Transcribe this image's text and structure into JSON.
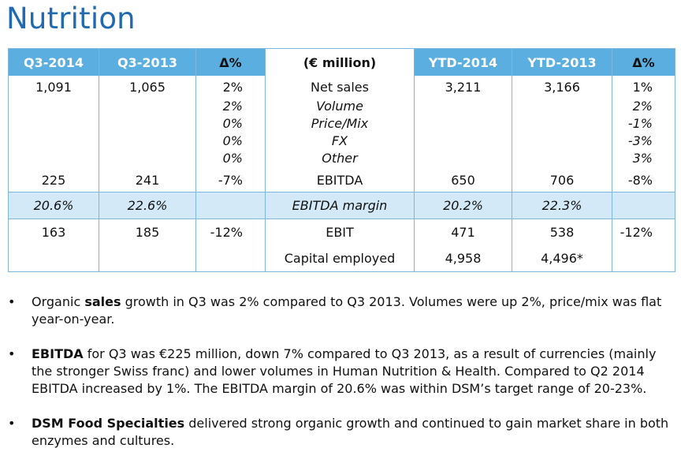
{
  "title": "Nutrition",
  "table": {
    "headers": [
      "Q3-2014",
      "Q3-2013",
      "Δ%",
      "(€ million)",
      "YTD-2014",
      "YTD-2013",
      "Δ%"
    ],
    "net_sales": {
      "label": "Net sales",
      "q3_2014": "1,091",
      "q3_2013": "1,065",
      "q_delta": "2%",
      "ytd_2014": "3,211",
      "ytd_2013": "3,166",
      "ytd_delta": "1%"
    },
    "breakdown": [
      {
        "label": "Volume",
        "q_delta": "2%",
        "ytd_delta": "2%"
      },
      {
        "label": "Price/Mix",
        "q_delta": "0%",
        "ytd_delta": "-1%"
      },
      {
        "label": "FX",
        "q_delta": "0%",
        "ytd_delta": "-3%"
      },
      {
        "label": "Other",
        "q_delta": "0%",
        "ytd_delta": "3%"
      }
    ],
    "ebitda": {
      "label": "EBITDA",
      "q3_2014": "225",
      "q3_2013": "241",
      "q_delta": "-7%",
      "ytd_2014": "650",
      "ytd_2013": "706",
      "ytd_delta": "-8%"
    },
    "ebitda_margin": {
      "label": "EBITDA margin",
      "q3_2014": "20.6%",
      "q3_2013": "22.6%",
      "ytd_2014": "20.2%",
      "ytd_2013": "22.3%"
    },
    "ebit": {
      "label": "EBIT",
      "q3_2014": "163",
      "q3_2013": "185",
      "q_delta": "-12%",
      "ytd_2014": "471",
      "ytd_2013": "538",
      "ytd_delta": "-12%"
    },
    "capital_employed": {
      "label": "Capital employed",
      "ytd_2014": "4,958",
      "ytd_2013": "4,496*"
    }
  },
  "bullets": [
    {
      "pre": "Organic ",
      "bold": "sales",
      "post": " growth in Q3 was 2% compared to Q3 2013. Volumes were up 2%, price/mix was flat year-on-year."
    },
    {
      "pre": "",
      "bold": "EBITDA",
      "post": " for Q3 was €225 million, down 7% compared to Q3 2013, as a result of currencies (mainly the stronger Swiss franc) and lower volumes in Human Nutrition & Health. Compared to Q2 2014 EBITDA increased by 1%. The EBITDA margin of 20.6% was within DSM’s target range of 20-23%."
    },
    {
      "pre": "",
      "bold": "DSM Food Specialties",
      "post": " delivered strong organic growth and continued to gain market share in both enzymes and cultures."
    }
  ],
  "bullet_char": "•"
}
